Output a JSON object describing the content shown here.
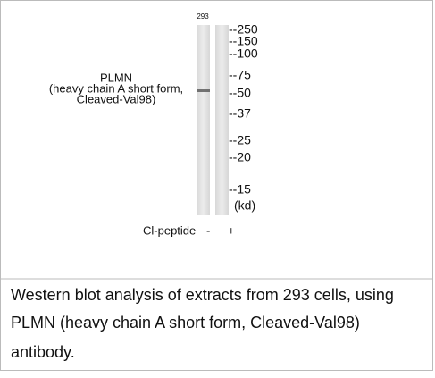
{
  "blot": {
    "lane_label": "293",
    "protein_label": [
      "PLMN",
      "(heavy chain A short form,",
      "Cleaved-Val98)"
    ],
    "markers": [
      "--250",
      "--150",
      "--100",
      "--75",
      "--50",
      "--37",
      "--25",
      "--20",
      "--15"
    ],
    "unit": "(kd)",
    "peptide": {
      "label": "Cl-peptide",
      "lanes": [
        "-",
        "+"
      ]
    }
  },
  "caption": {
    "lines": [
      "Western blot analysis of extracts from 293 cells, using",
      "PLMN (heavy chain A short form, Cleaved-Val98)",
      "antibody."
    ]
  }
}
